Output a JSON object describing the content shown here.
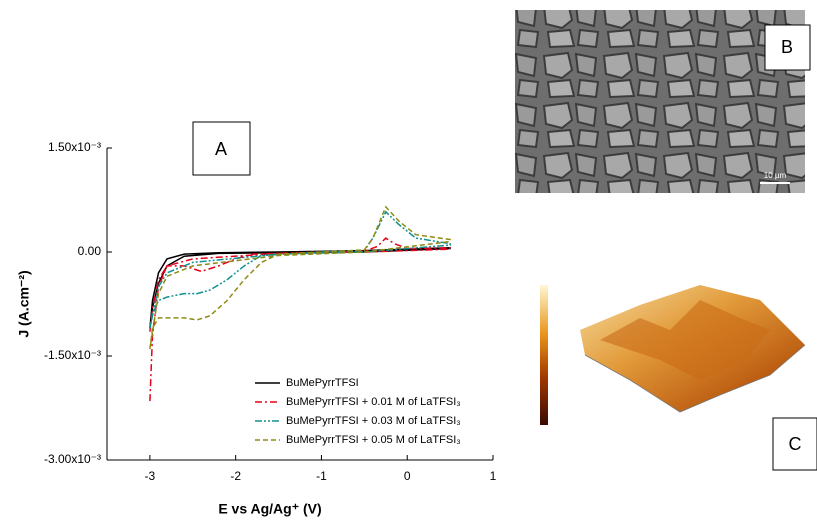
{
  "chart_data": {
    "type": "line",
    "xlabel": "E vs Ag/Ag⁺  (V)",
    "ylabel": "J  (A.cm⁻²)",
    "xlim": [
      -3.5,
      1
    ],
    "ylim": [
      -0.003,
      0.0015
    ],
    "xticks": [
      -3,
      -2,
      -1,
      0,
      1
    ],
    "yticks": [
      {
        "value": 0.0015,
        "label": "1.50x10⁻³"
      },
      {
        "value": 0,
        "label": "0.00"
      },
      {
        "value": -0.0015,
        "label": "-1.50x10⁻³"
      },
      {
        "value": -0.003,
        "label": "-3.00x10⁻³"
      }
    ],
    "legend": "lower right",
    "annotations": [
      "A",
      "B",
      "C",
      "10 µm"
    ],
    "series": [
      {
        "name": "BuMePyrrTFSI",
        "color": "#000000",
        "dash": "solid",
        "x": [
          -3,
          -2.97,
          -2.9,
          -2.8,
          -2.6,
          -2.2,
          -1.5,
          -0.5,
          0.5,
          0.5,
          -0.5,
          -1.5,
          -2.2,
          -2.6,
          -2.8,
          -2.9,
          -2.97,
          -3
        ],
        "values": [
          -0.0011,
          -0.0007,
          -0.0003,
          -0.0001,
          -3e-05,
          -1e-05,
          0,
          2e-05,
          6e-05,
          5e-05,
          0,
          -1e-05,
          -2e-05,
          -6e-05,
          -0.0002,
          -0.00045,
          -0.0008,
          -0.0011
        ]
      },
      {
        "name": "BuMePyrrTFSI + 0.01 M of LaTFSI₃",
        "color": "#e8001c",
        "dash": "dashdot",
        "x": [
          -3,
          -2.97,
          -2.9,
          -2.8,
          -2.6,
          -2.4,
          -2.2,
          -2.0,
          -1.8,
          -1.0,
          -0.5,
          -0.35,
          -0.25,
          -0.15,
          0,
          0.5,
          0.5,
          -0.5,
          -1.5,
          -2.5,
          -2.8,
          -2.9,
          -2.97,
          -3
        ],
        "values": [
          -0.00215,
          -0.0012,
          -0.0005,
          -0.0002,
          -0.0002,
          -0.00028,
          -0.0002,
          -0.0001,
          -3e-05,
          0,
          1e-05,
          8e-05,
          0.0002,
          0.00012,
          5e-05,
          6e-05,
          4e-05,
          0,
          -2e-05,
          -0.0001,
          -0.0002,
          -0.0004,
          -0.0008,
          -0.00115
        ]
      },
      {
        "name": "BuMePyrrTFSI + 0.03 M of LaTFSI₃",
        "color": "#12918e",
        "dash": "dashdotdot",
        "x": [
          -3,
          -2.97,
          -2.9,
          -2.8,
          -2.6,
          -2.45,
          -2.3,
          -2.1,
          -1.9,
          -1.7,
          -1.0,
          -0.5,
          -0.4,
          -0.25,
          -0.1,
          0.1,
          0.5,
          0.5,
          -0.5,
          -1.5,
          -2.5,
          -2.8,
          -2.9,
          -3
        ],
        "values": [
          -0.0011,
          -0.0009,
          -0.0007,
          -0.00065,
          -0.0006,
          -0.0006,
          -0.00055,
          -0.0004,
          -0.0002,
          -5e-05,
          0,
          2e-05,
          0.0002,
          0.00058,
          0.0004,
          0.0002,
          0.00012,
          0.0001,
          0,
          -3e-05,
          -0.00015,
          -0.0003,
          -0.0005,
          -0.0011
        ]
      },
      {
        "name": "BuMePyrrTFSI + 0.05 M of LaTFSI₃",
        "color": "#8f8a14",
        "dash": "dashed",
        "x": [
          -3,
          -2.97,
          -2.9,
          -2.8,
          -2.6,
          -2.45,
          -2.3,
          -2.1,
          -1.9,
          -1.7,
          -1.5,
          -1.0,
          -0.5,
          -0.4,
          -0.25,
          -0.1,
          0.1,
          0.5,
          0.5,
          -0.5,
          -1.5,
          -2.5,
          -2.8,
          -2.9,
          -3
        ],
        "values": [
          -0.0014,
          -0.0011,
          -0.00095,
          -0.00095,
          -0.00095,
          -0.00098,
          -0.00092,
          -0.0007,
          -0.0004,
          -0.00015,
          -3e-05,
          0,
          3e-05,
          0.0002,
          0.00065,
          0.00045,
          0.00025,
          0.00018,
          0.00015,
          0,
          -5e-05,
          -0.0002,
          -0.00035,
          -0.0006,
          -0.0014
        ]
      }
    ]
  }
}
